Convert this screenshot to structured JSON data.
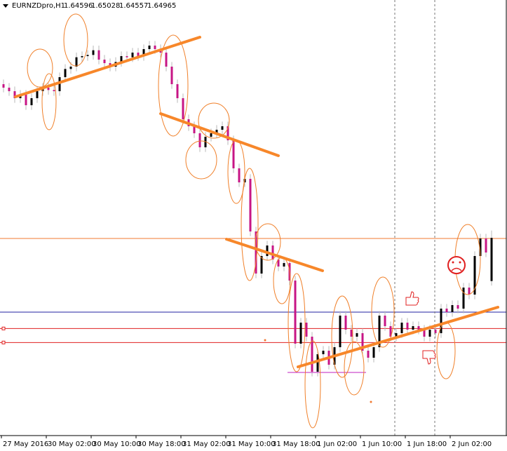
{
  "header": {
    "symbol": "EURNZDpro,H1",
    "open": 1.64596,
    "high": 1.65028,
    "low": 1.64557,
    "close": 1.64965
  },
  "chart_data": {
    "type": "candlestick",
    "up_color": "#000000",
    "down_color": "#c71585",
    "wick_color": "#b8b8b8",
    "ylim": [
      1.6328,
      1.67
    ],
    "x_labels": [
      "27 May 2016",
      "30 May 02:00",
      "30 May 10:00",
      "30 May 18:00",
      "31 May 02:00",
      "31 May 10:00",
      "31 May 18:00",
      "1 Jun 02:00",
      "1 Jun 10:00",
      "1 Jun 18:00",
      "2 Jun 02:00"
    ],
    "levels": [
      {
        "value": 1.6496,
        "color": "#f07830"
      },
      {
        "value": 1.6433,
        "color": "#2020a0"
      },
      {
        "value": 1.6419,
        "color": "#e02020"
      },
      {
        "value": 1.6407,
        "color": "#e02020"
      }
    ],
    "candles": [
      [
        1.6628,
        1.6632,
        1.6621,
        1.6625
      ],
      [
        1.6625,
        1.6629,
        1.6618,
        1.6622
      ],
      [
        1.6622,
        1.6626,
        1.6612,
        1.6616
      ],
      [
        1.6616,
        1.6623,
        1.6612,
        1.6619
      ],
      [
        1.6619,
        1.6623,
        1.6606,
        1.661
      ],
      [
        1.661,
        1.662,
        1.6606,
        1.6616
      ],
      [
        1.6616,
        1.6626,
        1.6612,
        1.6622
      ],
      [
        1.6622,
        1.6629,
        1.6618,
        1.6625
      ],
      [
        1.6625,
        1.6629,
        1.6619,
        1.6623
      ],
      [
        1.6623,
        1.6627,
        1.6618,
        1.6622
      ],
      [
        1.6622,
        1.6638,
        1.6618,
        1.6634
      ],
      [
        1.6634,
        1.6645,
        1.663,
        1.6641
      ],
      [
        1.6641,
        1.6647,
        1.6637,
        1.6643
      ],
      [
        1.6643,
        1.6655,
        1.6639,
        1.6651
      ],
      [
        1.6651,
        1.6656,
        1.6647,
        1.6652
      ],
      [
        1.6652,
        1.6657,
        1.6648,
        1.6653
      ],
      [
        1.6653,
        1.6661,
        1.6649,
        1.6657
      ],
      [
        1.6657,
        1.6661,
        1.6645,
        1.6649
      ],
      [
        1.6649,
        1.6653,
        1.6642,
        1.6646
      ],
      [
        1.6646,
        1.665,
        1.6639,
        1.6643
      ],
      [
        1.6643,
        1.6651,
        1.6639,
        1.6647
      ],
      [
        1.6647,
        1.6656,
        1.6643,
        1.6652
      ],
      [
        1.6652,
        1.6656,
        1.6647,
        1.6651
      ],
      [
        1.6651,
        1.6659,
        1.6647,
        1.6655
      ],
      [
        1.6655,
        1.6659,
        1.6648,
        1.6652
      ],
      [
        1.6652,
        1.6662,
        1.6648,
        1.6658
      ],
      [
        1.6658,
        1.6665,
        1.6654,
        1.6661
      ],
      [
        1.6661,
        1.6665,
        1.6654,
        1.6658
      ],
      [
        1.6658,
        1.6662,
        1.6651,
        1.6655
      ],
      [
        1.6655,
        1.6659,
        1.6639,
        1.6643
      ],
      [
        1.6643,
        1.6647,
        1.6624,
        1.6628
      ],
      [
        1.6628,
        1.6632,
        1.6612,
        1.6616
      ],
      [
        1.6616,
        1.662,
        1.6594,
        1.6598
      ],
      [
        1.6598,
        1.6602,
        1.6588,
        1.6592
      ],
      [
        1.6592,
        1.6596,
        1.6582,
        1.6586
      ],
      [
        1.6586,
        1.659,
        1.657,
        1.6574
      ],
      [
        1.6574,
        1.6587,
        1.657,
        1.6583
      ],
      [
        1.6583,
        1.659,
        1.6579,
        1.6586
      ],
      [
        1.6586,
        1.6593,
        1.6582,
        1.6589
      ],
      [
        1.6589,
        1.6596,
        1.6585,
        1.6592
      ],
      [
        1.6592,
        1.6596,
        1.6576,
        1.658
      ],
      [
        1.658,
        1.6584,
        1.6552,
        1.6556
      ],
      [
        1.6556,
        1.656,
        1.654,
        1.6544
      ],
      [
        1.6544,
        1.6551,
        1.654,
        1.6547
      ],
      [
        1.6547,
        1.6551,
        1.6498,
        1.6502
      ],
      [
        1.6502,
        1.6506,
        1.6462,
        1.6466
      ],
      [
        1.6466,
        1.6485,
        1.6462,
        1.6481
      ],
      [
        1.6481,
        1.6494,
        1.6477,
        1.649
      ],
      [
        1.649,
        1.6494,
        1.6474,
        1.6478
      ],
      [
        1.6478,
        1.6482,
        1.6468,
        1.6472
      ],
      [
        1.6472,
        1.6479,
        1.6468,
        1.6475
      ],
      [
        1.6475,
        1.6479,
        1.6456,
        1.646
      ],
      [
        1.646,
        1.6464,
        1.6402,
        1.6406
      ],
      [
        1.6406,
        1.6428,
        1.6402,
        1.6424
      ],
      [
        1.6424,
        1.6428,
        1.6408,
        1.6412
      ],
      [
        1.6412,
        1.6416,
        1.6378,
        1.6382
      ],
      [
        1.6382,
        1.6401,
        1.6378,
        1.6397
      ],
      [
        1.6397,
        1.6404,
        1.6393,
        1.64
      ],
      [
        1.64,
        1.6404,
        1.6384,
        1.6388
      ],
      [
        1.6388,
        1.6407,
        1.6384,
        1.6403
      ],
      [
        1.6403,
        1.6434,
        1.6399,
        1.643
      ],
      [
        1.643,
        1.6434,
        1.6414,
        1.6418
      ],
      [
        1.6418,
        1.6422,
        1.6408,
        1.6412
      ],
      [
        1.6412,
        1.6419,
        1.6408,
        1.6415
      ],
      [
        1.6415,
        1.6419,
        1.6396,
        1.64
      ],
      [
        1.64,
        1.6404,
        1.639,
        1.6394
      ],
      [
        1.6394,
        1.6407,
        1.639,
        1.6403
      ],
      [
        1.6403,
        1.6434,
        1.6399,
        1.643
      ],
      [
        1.643,
        1.6434,
        1.6417,
        1.6421
      ],
      [
        1.6421,
        1.6425,
        1.6408,
        1.6412
      ],
      [
        1.6412,
        1.6419,
        1.6408,
        1.6415
      ],
      [
        1.6415,
        1.6428,
        1.6411,
        1.6424
      ],
      [
        1.6424,
        1.6428,
        1.6414,
        1.6418
      ],
      [
        1.6418,
        1.6425,
        1.6414,
        1.6421
      ],
      [
        1.6421,
        1.6425,
        1.6414,
        1.6418
      ],
      [
        1.6418,
        1.6422,
        1.6408,
        1.6412
      ],
      [
        1.6412,
        1.6422,
        1.6408,
        1.6418
      ],
      [
        1.6418,
        1.6422,
        1.6411,
        1.6415
      ],
      [
        1.6415,
        1.644,
        1.6411,
        1.6436
      ],
      [
        1.6436,
        1.644,
        1.6429,
        1.6433
      ],
      [
        1.6433,
        1.6443,
        1.6429,
        1.6439
      ],
      [
        1.6439,
        1.6443,
        1.6432,
        1.6436
      ],
      [
        1.6436,
        1.6458,
        1.6432,
        1.6454
      ],
      [
        1.6454,
        1.6458,
        1.6444,
        1.6448
      ],
      [
        1.6448,
        1.6485,
        1.6444,
        1.6481
      ],
      [
        1.6481,
        1.65,
        1.6477,
        1.6496
      ],
      [
        1.6496,
        1.65,
        1.648,
        1.6484
      ],
      [
        1.64596,
        1.65028,
        1.64557,
        1.64965
      ]
    ]
  }
}
